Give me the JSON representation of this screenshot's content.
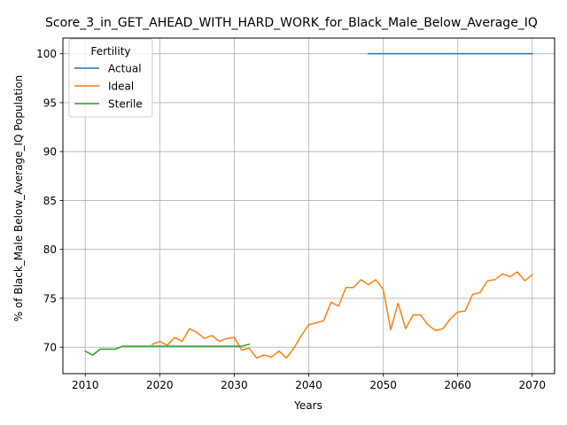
{
  "chart_data": {
    "type": "line",
    "title": "Score_3_in_GET_AHEAD_WITH_HARD_WORK_for_Black_Male_Below_Average_IQ",
    "xlabel": "Years",
    "ylabel": "% of Black_Male Below_Average_IQ Population",
    "xlim": [
      2007,
      2073
    ],
    "ylim": [
      67.3,
      101.6
    ],
    "xticks": [
      2010,
      2020,
      2030,
      2040,
      2050,
      2060,
      2070
    ],
    "yticks": [
      70,
      75,
      80,
      85,
      90,
      95,
      100
    ],
    "grid": true,
    "legend": {
      "title": "Fertility",
      "placement": "upper left"
    },
    "series": [
      {
        "name": "Actual",
        "color": "#1f77b4",
        "x": [
          2048,
          2050,
          2055,
          2060,
          2065,
          2070
        ],
        "y": [
          100,
          100,
          100,
          100,
          100,
          100
        ]
      },
      {
        "name": "Ideal",
        "color": "#ff7f0e",
        "x": [
          2019,
          2020,
          2021,
          2022,
          2023,
          2024,
          2025,
          2026,
          2027,
          2028,
          2029,
          2030,
          2031,
          2032,
          2033,
          2034,
          2035,
          2036,
          2037,
          2038,
          2039,
          2040,
          2041,
          2042,
          2043,
          2044,
          2045,
          2046,
          2047,
          2048,
          2049,
          2050,
          2051,
          2052,
          2053,
          2054,
          2055,
          2056,
          2057,
          2058,
          2059,
          2060,
          2061,
          2062,
          2063,
          2064,
          2065,
          2066,
          2067,
          2068,
          2069,
          2070
        ],
        "y": [
          70.3,
          70.6,
          70.2,
          71.0,
          70.6,
          71.9,
          71.5,
          70.9,
          71.2,
          70.6,
          70.9,
          71.0,
          69.7,
          69.9,
          68.9,
          69.2,
          69.0,
          69.6,
          68.9,
          69.9,
          71.2,
          72.3,
          72.5,
          72.7,
          74.6,
          74.2,
          76.1,
          76.1,
          76.9,
          76.4,
          76.9,
          75.9,
          71.8,
          74.5,
          71.9,
          73.3,
          73.3,
          72.3,
          71.7,
          71.9,
          72.9,
          73.6,
          73.7,
          75.4,
          75.6,
          76.8,
          76.9,
          77.5,
          77.2,
          77.7,
          76.8,
          77.4
        ]
      },
      {
        "name": "Sterile",
        "color": "#2ca02c",
        "x": [
          2010,
          2011,
          2012,
          2013,
          2014,
          2015,
          2016,
          2017,
          2018,
          2019,
          2020,
          2021,
          2022,
          2023,
          2024,
          2025,
          2026,
          2027,
          2028,
          2029,
          2030,
          2031,
          2032
        ],
        "y": [
          69.6,
          69.2,
          69.8,
          69.8,
          69.8,
          70.1,
          70.1,
          70.1,
          70.1,
          70.1,
          70.1,
          70.1,
          70.1,
          70.1,
          70.1,
          70.1,
          70.1,
          70.1,
          70.1,
          70.1,
          70.1,
          70.1,
          70.3
        ]
      }
    ]
  }
}
